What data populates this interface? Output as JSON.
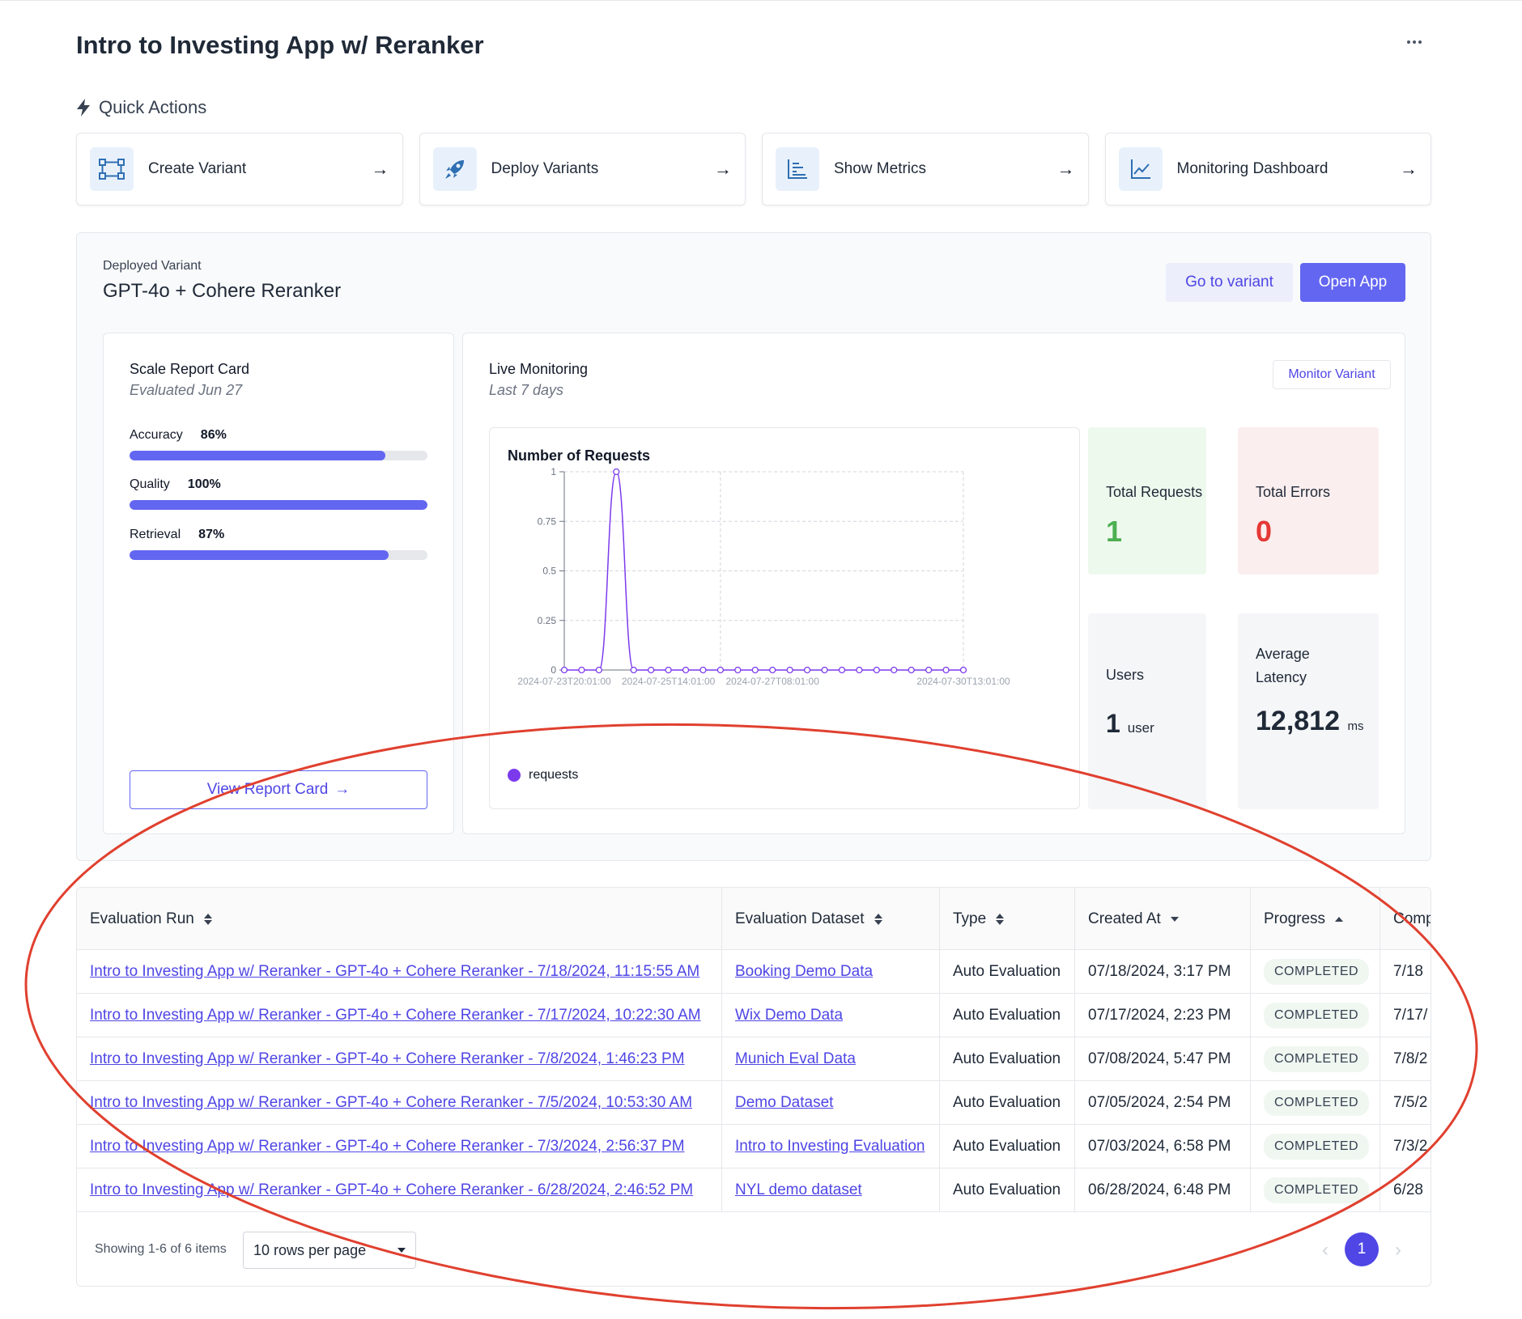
{
  "page": {
    "title": "Intro to Investing App w/ Reranker"
  },
  "quick_actions": {
    "heading": "Quick Actions",
    "items": [
      {
        "label": "Create Variant",
        "icon": "flow-icon"
      },
      {
        "label": "Deploy Variants",
        "icon": "rocket-icon"
      },
      {
        "label": "Show Metrics",
        "icon": "bar-list-icon"
      },
      {
        "label": "Monitoring Dashboard",
        "icon": "line-chart-icon"
      }
    ]
  },
  "deployed": {
    "label": "Deployed Variant",
    "name": "GPT-4o + Cohere Reranker",
    "go_to_variant": "Go to variant",
    "open_app": "Open App"
  },
  "report_card": {
    "title": "Scale Report Card",
    "subtitle": "Evaluated Jun 27",
    "metrics": [
      {
        "name": "Accuracy",
        "value": "86%",
        "fraction": 0.86
      },
      {
        "name": "Quality",
        "value": "100%",
        "fraction": 1.0
      },
      {
        "name": "Retrieval",
        "value": "87%",
        "fraction": 0.87
      }
    ],
    "button": "View Report Card"
  },
  "live_monitoring": {
    "title": "Live Monitoring",
    "subtitle": "Last 7 days",
    "monitor_button": "Monitor Variant",
    "stats": {
      "total_requests": {
        "label": "Total Requests",
        "value": "1",
        "color": "#4caf50"
      },
      "total_errors": {
        "label": "Total Errors",
        "value": "0",
        "color": "#e53935"
      },
      "users": {
        "label": "Users",
        "value": "1",
        "unit": "user"
      },
      "latency": {
        "label": "Average Latency",
        "value": "12,812",
        "unit": "ms"
      }
    }
  },
  "chart_data": {
    "type": "line",
    "title": "Number of Requests",
    "series": [
      {
        "name": "requests",
        "color": "#7c3aed",
        "values": [
          0,
          0,
          0,
          1,
          0,
          0,
          0,
          0,
          0,
          0,
          0,
          0,
          0,
          0,
          0,
          0,
          0,
          0,
          0,
          0,
          0,
          0,
          0,
          0
        ]
      }
    ],
    "ylim": [
      0,
      1
    ],
    "yticks": [
      "0",
      "0.25",
      "0.5",
      "0.75",
      "1"
    ],
    "xtick_labels": [
      "2024-07-23T20:01:00",
      "2024-07-25T14:01:00",
      "2024-07-27T08:01:00",
      "2024-07-30T13:01:00"
    ]
  },
  "table": {
    "columns": [
      "Evaluation Run",
      "Evaluation Dataset",
      "Type",
      "Created At",
      "Progress",
      "Comp"
    ],
    "rows": [
      {
        "run": "Intro to Investing App w/ Reranker - GPT-4o + Cohere Reranker - 7/18/2024, 11:15:55 AM",
        "dataset": "Booking Demo Data",
        "type": "Auto Evaluation",
        "created": "07/18/2024, 3:17 PM",
        "progress": "COMPLETED",
        "completed": "7/18"
      },
      {
        "run": "Intro to Investing App w/ Reranker - GPT-4o + Cohere Reranker - 7/17/2024, 10:22:30 AM",
        "dataset": "Wix Demo Data",
        "type": "Auto Evaluation",
        "created": "07/17/2024, 2:23 PM",
        "progress": "COMPLETED",
        "completed": "7/17/"
      },
      {
        "run": "Intro to Investing App w/ Reranker - GPT-4o + Cohere Reranker - 7/8/2024, 1:46:23 PM",
        "dataset": "Munich Eval Data",
        "type": "Auto Evaluation",
        "created": "07/08/2024, 5:47 PM",
        "progress": "COMPLETED",
        "completed": "7/8/2"
      },
      {
        "run": "Intro to Investing App w/ Reranker - GPT-4o + Cohere Reranker - 7/5/2024, 10:53:30 AM",
        "dataset": "Demo Dataset",
        "type": "Auto Evaluation",
        "created": "07/05/2024, 2:54 PM",
        "progress": "COMPLETED",
        "completed": "7/5/2"
      },
      {
        "run": "Intro to Investing App w/ Reranker - GPT-4o + Cohere Reranker - 7/3/2024, 2:56:37 PM",
        "dataset": "Intro to Investing Evaluation",
        "type": "Auto Evaluation",
        "created": "07/03/2024, 6:58 PM",
        "progress": "COMPLETED",
        "completed": "7/3/2"
      },
      {
        "run": "Intro to Investing App w/ Reranker - GPT-4o + Cohere Reranker - 6/28/2024, 2:46:52 PM",
        "dataset": "NYL demo dataset",
        "type": "Auto Evaluation",
        "created": "06/28/2024, 6:48 PM",
        "progress": "COMPLETED",
        "completed": "6/28"
      }
    ],
    "footer": {
      "showing": "Showing 1-6 of 6 items",
      "rows_per_page": "10 rows per page",
      "current_page": "1"
    }
  }
}
